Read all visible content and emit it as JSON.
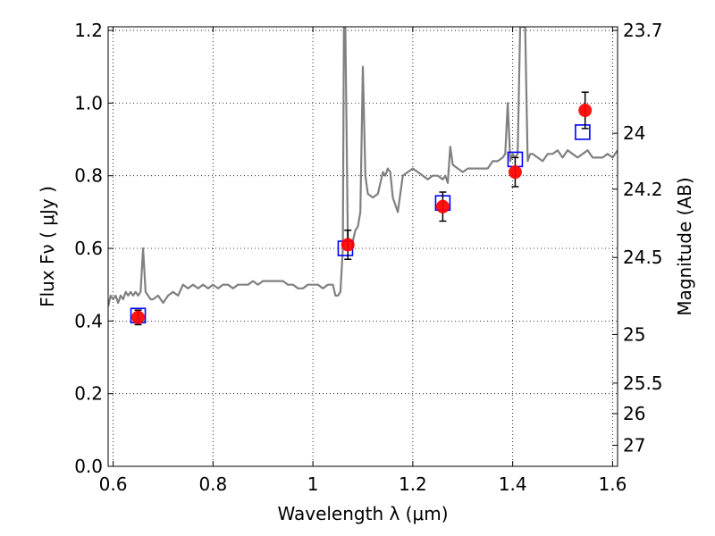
{
  "chart_data": {
    "type": "scatter",
    "title": "",
    "xlabel": "Wavelength  λ (μm)",
    "ylabel": "Flux  Fν  ( μJy )",
    "y2label": "Magnitude (AB)",
    "xlim": [
      0.59,
      1.61
    ],
    "ylim": [
      0.0,
      1.21
    ],
    "grid": true,
    "grid_style": "dotted",
    "x_ticks": [
      0.6,
      0.8,
      1.0,
      1.2,
      1.4,
      1.6
    ],
    "x_tick_labels": [
      "0.6",
      "0.8",
      "1",
      "1.2",
      "1.4",
      "1.6"
    ],
    "y_ticks": [
      0.0,
      0.2,
      0.4,
      0.6,
      0.8,
      1.0,
      1.2
    ],
    "y_tick_labels": [
      "0.0",
      "0.2",
      "0.4",
      "0.6",
      "0.8",
      "1.0",
      "1.2"
    ],
    "y2_ticks": [
      {
        "label": "23.7",
        "flux": 1.2
      },
      {
        "label": "24",
        "flux": 0.917
      },
      {
        "label": "24.2",
        "flux": 0.763
      },
      {
        "label": "24.5",
        "flux": 0.575
      },
      {
        "label": "25",
        "flux": 0.363
      },
      {
        "label": "25.5",
        "flux": 0.229
      },
      {
        "label": "26",
        "flux": 0.145
      },
      {
        "label": "27",
        "flux": 0.058
      }
    ],
    "series": [
      {
        "type": "line",
        "color": "#808080",
        "x": [
          0.59,
          0.595,
          0.6,
          0.605,
          0.61,
          0.615,
          0.62,
          0.625,
          0.63,
          0.635,
          0.64,
          0.645,
          0.65,
          0.655,
          0.66,
          0.665,
          0.67,
          0.675,
          0.68,
          0.69,
          0.7,
          0.71,
          0.72,
          0.73,
          0.74,
          0.75,
          0.76,
          0.77,
          0.78,
          0.79,
          0.8,
          0.81,
          0.82,
          0.83,
          0.84,
          0.85,
          0.86,
          0.87,
          0.88,
          0.89,
          0.9,
          0.91,
          0.92,
          0.93,
          0.94,
          0.95,
          0.96,
          0.97,
          0.98,
          0.99,
          1.0,
          1.01,
          1.02,
          1.03,
          1.04,
          1.045,
          1.05,
          1.055,
          1.06,
          1.062,
          1.065,
          1.07,
          1.075,
          1.08,
          1.085,
          1.09,
          1.095,
          1.1,
          1.105,
          1.11,
          1.12,
          1.13,
          1.14,
          1.145,
          1.15,
          1.155,
          1.16,
          1.165,
          1.17,
          1.18,
          1.19,
          1.2,
          1.21,
          1.22,
          1.23,
          1.24,
          1.25,
          1.26,
          1.265,
          1.27,
          1.275,
          1.28,
          1.29,
          1.3,
          1.31,
          1.32,
          1.33,
          1.34,
          1.35,
          1.36,
          1.37,
          1.38,
          1.385,
          1.39,
          1.395,
          1.4,
          1.405,
          1.41,
          1.415,
          1.42,
          1.425,
          1.43,
          1.435,
          1.44,
          1.45,
          1.46,
          1.47,
          1.48,
          1.49,
          1.5,
          1.51,
          1.52,
          1.53,
          1.54,
          1.55,
          1.56,
          1.57,
          1.58,
          1.59,
          1.6,
          1.61
        ],
        "y": [
          0.44,
          0.47,
          0.46,
          0.47,
          0.45,
          0.47,
          0.46,
          0.48,
          0.47,
          0.48,
          0.47,
          0.48,
          0.47,
          0.48,
          0.6,
          0.48,
          0.47,
          0.46,
          0.46,
          0.47,
          0.45,
          0.47,
          0.48,
          0.47,
          0.5,
          0.49,
          0.5,
          0.49,
          0.5,
          0.49,
          0.5,
          0.49,
          0.5,
          0.5,
          0.49,
          0.5,
          0.5,
          0.5,
          0.51,
          0.5,
          0.51,
          0.51,
          0.51,
          0.51,
          0.51,
          0.5,
          0.5,
          0.49,
          0.49,
          0.5,
          0.5,
          0.5,
          0.49,
          0.5,
          0.5,
          0.47,
          0.47,
          0.48,
          0.6,
          1.21,
          1.21,
          0.62,
          0.62,
          0.62,
          0.65,
          0.66,
          0.7,
          1.1,
          0.8,
          0.75,
          0.74,
          0.75,
          0.81,
          0.8,
          0.82,
          0.81,
          0.74,
          0.72,
          0.7,
          0.8,
          0.81,
          0.82,
          0.81,
          0.8,
          0.79,
          0.8,
          0.8,
          0.79,
          0.8,
          0.78,
          0.88,
          0.83,
          0.82,
          0.81,
          0.82,
          0.82,
          0.82,
          0.82,
          0.82,
          0.84,
          0.84,
          0.85,
          0.86,
          1.0,
          0.84,
          0.86,
          0.85,
          0.86,
          1.21,
          1.21,
          1.21,
          0.84,
          0.86,
          0.86,
          0.85,
          0.84,
          0.86,
          0.86,
          0.87,
          0.85,
          0.87,
          0.86,
          0.85,
          0.86,
          0.87,
          0.85,
          0.85,
          0.85,
          0.86,
          0.85,
          0.87
        ]
      },
      {
        "type": "marker",
        "marker": "square",
        "color": "#0000ff",
        "x": [
          0.65,
          1.065,
          1.26,
          1.405,
          1.54
        ],
        "y": [
          0.415,
          0.6,
          0.725,
          0.845,
          0.92
        ]
      },
      {
        "type": "marker",
        "marker": "circle",
        "color": "#ff0000",
        "x": [
          0.65,
          1.07,
          1.26,
          1.405,
          1.545
        ],
        "y": [
          0.41,
          0.61,
          0.715,
          0.81,
          0.98
        ],
        "yerr": [
          0.02,
          0.04,
          0.04,
          0.04,
          0.05
        ]
      }
    ]
  }
}
